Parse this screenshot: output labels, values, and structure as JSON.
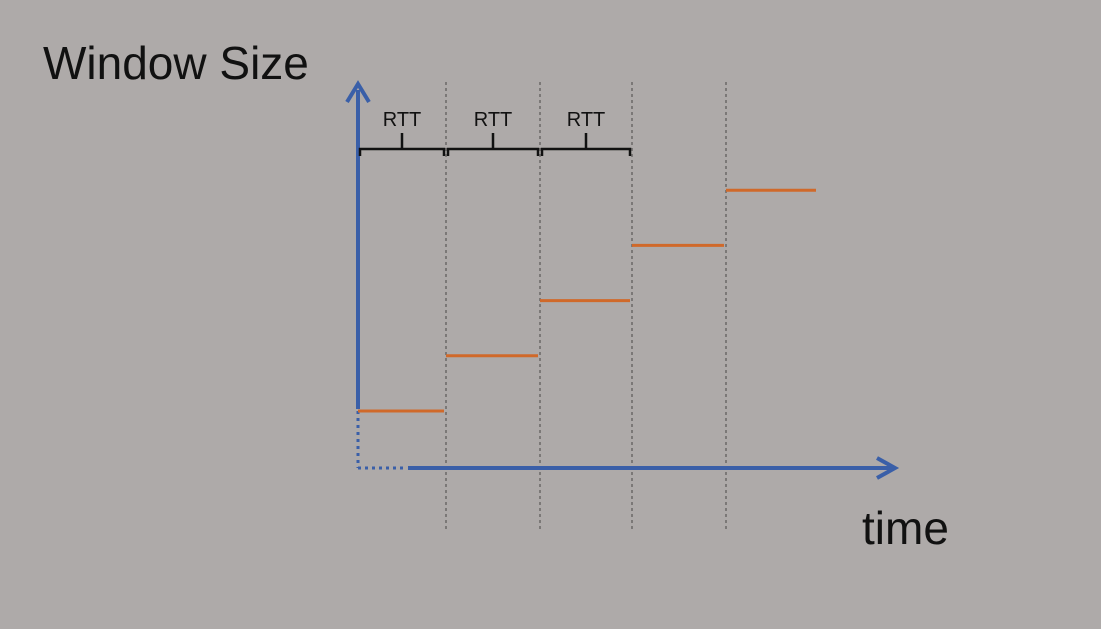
{
  "title": "",
  "labels": {
    "y_axis": "Window Size",
    "x_axis": "time",
    "intervals": [
      "RTT",
      "RTT",
      "RTT"
    ]
  },
  "steps": {
    "count": 5,
    "relative_levels": [
      1,
      2,
      3,
      4,
      5
    ]
  },
  "colors": {
    "background": "#aeaaa9",
    "axis": "#3a5fa8",
    "step": "#d0692a",
    "divider": "#7b7877",
    "bracket": "#111111"
  }
}
